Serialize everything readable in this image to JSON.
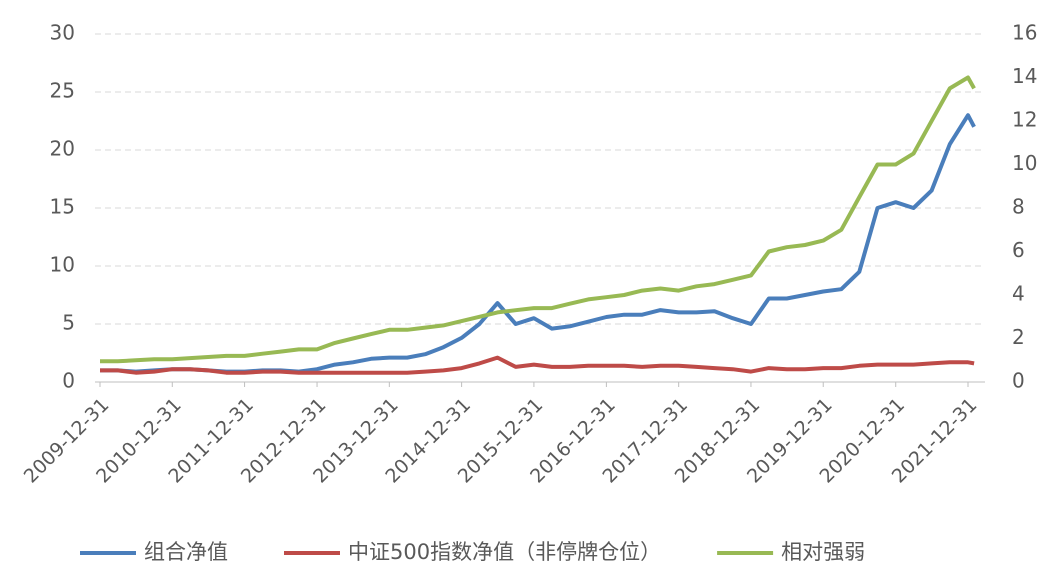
{
  "chart_data": {
    "type": "line",
    "x": [
      "2009-12-31",
      "2010-03-31",
      "2010-06-30",
      "2010-09-30",
      "2010-12-31",
      "2011-03-31",
      "2011-06-30",
      "2011-09-30",
      "2011-12-31",
      "2012-03-31",
      "2012-06-30",
      "2012-09-30",
      "2012-12-31",
      "2013-03-31",
      "2013-06-30",
      "2013-09-30",
      "2013-12-31",
      "2014-03-31",
      "2014-06-30",
      "2014-09-30",
      "2014-12-31",
      "2015-03-31",
      "2015-06-30",
      "2015-09-30",
      "2015-12-31",
      "2016-03-31",
      "2016-06-30",
      "2016-09-30",
      "2016-12-31",
      "2017-03-31",
      "2017-06-30",
      "2017-09-30",
      "2017-12-31",
      "2018-03-31",
      "2018-06-30",
      "2018-09-30",
      "2018-12-31",
      "2019-03-31",
      "2019-06-30",
      "2019-09-30",
      "2019-12-31",
      "2020-03-31",
      "2020-06-30",
      "2020-09-30",
      "2020-12-31",
      "2021-03-31",
      "2021-06-30",
      "2021-09-30",
      "2021-12-31",
      "2022-01-31"
    ],
    "series": [
      {
        "name": "组合净值",
        "color": "#4a7ebb",
        "values": [
          1.0,
          1.0,
          0.9,
          1.0,
          1.1,
          1.1,
          1.0,
          0.9,
          0.9,
          1.0,
          1.0,
          0.9,
          1.1,
          1.5,
          1.7,
          2.0,
          2.1,
          2.1,
          2.4,
          3.0,
          3.8,
          5.0,
          6.8,
          5.0,
          5.5,
          4.6,
          4.8,
          5.2,
          5.6,
          5.8,
          5.8,
          6.2,
          6.0,
          6.0,
          6.1,
          5.5,
          5.0,
          7.2,
          7.2,
          7.5,
          7.8,
          8.0,
          9.5,
          15.0,
          15.5,
          15.0,
          16.5,
          20.5,
          23.0,
          22.0
        ]
      },
      {
        "name": "中证500指数净值（非停牌仓位）",
        "color": "#be4b48",
        "values": [
          1.0,
          1.0,
          0.8,
          0.9,
          1.1,
          1.1,
          1.0,
          0.8,
          0.8,
          0.9,
          0.9,
          0.8,
          0.8,
          0.8,
          0.8,
          0.8,
          0.8,
          0.8,
          0.9,
          1.0,
          1.2,
          1.6,
          2.1,
          1.3,
          1.5,
          1.3,
          1.3,
          1.4,
          1.4,
          1.4,
          1.3,
          1.4,
          1.4,
          1.3,
          1.2,
          1.1,
          0.9,
          1.2,
          1.1,
          1.1,
          1.2,
          1.2,
          1.4,
          1.5,
          1.5,
          1.5,
          1.6,
          1.7,
          1.7,
          1.6
        ]
      },
      {
        "name": "相对强弱",
        "color": "#98b954",
        "axis": "y2",
        "values": [
          0.95,
          0.95,
          1.0,
          1.05,
          1.05,
          1.1,
          1.15,
          1.2,
          1.2,
          1.3,
          1.4,
          1.5,
          1.5,
          1.8,
          2.0,
          2.2,
          2.4,
          2.4,
          2.5,
          2.6,
          2.8,
          3.0,
          3.2,
          3.3,
          3.4,
          3.4,
          3.6,
          3.8,
          3.9,
          4.0,
          4.2,
          4.3,
          4.2,
          4.4,
          4.5,
          4.7,
          4.9,
          6.0,
          6.2,
          6.3,
          6.5,
          7.0,
          8.5,
          10.0,
          10.0,
          10.5,
          12.0,
          13.5,
          14.0,
          13.5
        ]
      }
    ],
    "xticks": [
      "2009-12-31",
      "2010-12-31",
      "2011-12-31",
      "2012-12-31",
      "2013-12-31",
      "2014-12-31",
      "2015-12-31",
      "2016-12-31",
      "2017-12-31",
      "2018-12-31",
      "2019-12-31",
      "2020-12-31",
      "2021-12-31"
    ],
    "ylim": [
      0,
      30
    ],
    "yticks": [
      0,
      5,
      10,
      15,
      20,
      25,
      30
    ],
    "y2lim": [
      0,
      16
    ],
    "y2ticks": [
      0,
      2,
      4,
      6,
      8,
      10,
      12,
      14,
      16
    ],
    "grid": true,
    "legend": "bottom"
  }
}
